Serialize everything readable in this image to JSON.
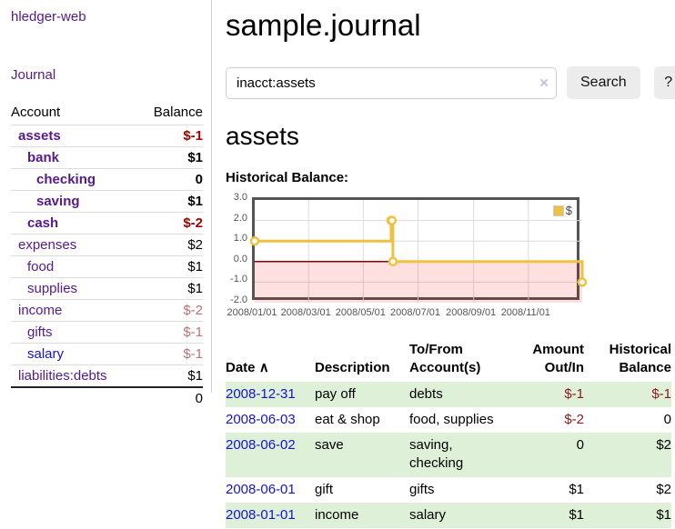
{
  "sidebar": {
    "app_title": "hledger-web",
    "journal_label": "Journal",
    "columns": {
      "account": "Account",
      "balance": "Balance"
    },
    "accounts": [
      {
        "name": "assets",
        "indent": 0,
        "bold": true,
        "balance": "$-1",
        "balance_style": "neg-strong",
        "link_style": "purple"
      },
      {
        "name": "bank",
        "indent": 1,
        "bold": true,
        "balance": "$1",
        "balance_style": "",
        "link_style": "purple"
      },
      {
        "name": "checking",
        "indent": 2,
        "bold": true,
        "balance": "0",
        "balance_style": "",
        "link_style": "purple"
      },
      {
        "name": "saving",
        "indent": 2,
        "bold": true,
        "balance": "$1",
        "balance_style": "",
        "link_style": "purple"
      },
      {
        "name": "cash",
        "indent": 1,
        "bold": true,
        "balance": "$-2",
        "balance_style": "neg-strong",
        "link_style": "purple"
      },
      {
        "name": "expenses",
        "indent": 0,
        "bold": false,
        "balance": "$2",
        "balance_style": "",
        "link_style": "purple"
      },
      {
        "name": "food",
        "indent": 1,
        "bold": false,
        "balance": "$1",
        "balance_style": "",
        "link_style": "purple"
      },
      {
        "name": "supplies",
        "indent": 1,
        "bold": false,
        "balance": "$1",
        "balance_style": "",
        "link_style": "purple"
      },
      {
        "name": "income",
        "indent": 0,
        "bold": false,
        "balance": "$-2",
        "balance_style": "neg-soft",
        "link_style": "purple"
      },
      {
        "name": "gifts",
        "indent": 1,
        "bold": false,
        "balance": "$-1",
        "balance_style": "neg-soft",
        "link_style": "purple"
      },
      {
        "name": "salary",
        "indent": 1,
        "bold": false,
        "balance": "$-1",
        "balance_style": "neg-soft",
        "link_style": "blue"
      },
      {
        "name": "liabilities:debts",
        "indent": 0,
        "bold": false,
        "balance": "$1",
        "balance_style": "",
        "link_style": "purple"
      }
    ],
    "total": "0"
  },
  "header": {
    "title": "sample.journal"
  },
  "search": {
    "value": "inacct:assets",
    "clear_icon": "×",
    "button_label": "Search",
    "help_label": "?"
  },
  "account_page": {
    "title": "assets",
    "chart_label": "Historical Balance:"
  },
  "chart_data": {
    "type": "line",
    "step": true,
    "title": "Historical Balance",
    "series": [
      {
        "name": "$",
        "color": "#edc240",
        "points": [
          [
            "2008-01-01",
            1
          ],
          [
            "2008-06-01",
            2
          ],
          [
            "2008-06-02",
            2
          ],
          [
            "2008-06-03",
            0
          ],
          [
            "2008-12-31",
            -1
          ]
        ]
      }
    ],
    "xlim": [
      "2008-01-01",
      "2008-12-31"
    ],
    "ylim": [
      -2,
      3
    ],
    "x_tick_labels": [
      "2008/01/01",
      "2008/03/01",
      "2008/05/01",
      "2008/07/01",
      "2008/09/01",
      "2008/11/01"
    ],
    "x_tick_dates": [
      "2008-01-01",
      "2008-03-01",
      "2008-05-01",
      "2008-07-01",
      "2008-09-01",
      "2008-11-01"
    ],
    "y_tick_labels": [
      "3.0",
      "2.0",
      "1.0",
      "0.0",
      "-1.0",
      "-2.0"
    ],
    "y_tick_values": [
      3,
      2,
      1,
      0,
      -1,
      -2
    ],
    "grid": true,
    "legend": {
      "label": "$",
      "position": "top-right"
    },
    "colors": {
      "grid": "#dcdcdc",
      "border": "#545454",
      "tick_text": "#545454",
      "negative_region_fill": "rgba(255,0,0,0.12)",
      "zero_line": "#8b0000"
    },
    "negative_region": {
      "from": 0,
      "to": -2
    }
  },
  "register": {
    "columns": {
      "date": "Date",
      "description": "Description",
      "accounts": "To/From Account(s)",
      "amount": "Amount Out/In",
      "balance": "Historical Balance"
    },
    "sort_indicator": "∧",
    "rows": [
      {
        "date": "2008-12-31",
        "description": "pay off",
        "accounts": "debts",
        "amount": "$-1",
        "amount_neg": true,
        "balance": "$-1",
        "balance_neg": true
      },
      {
        "date": "2008-06-03",
        "description": "eat & shop",
        "accounts": "food, supplies",
        "amount": "$-2",
        "amount_neg": true,
        "balance": "0",
        "balance_neg": false
      },
      {
        "date": "2008-06-02",
        "description": "save",
        "accounts": "saving, checking",
        "amount": "0",
        "amount_neg": false,
        "balance": "$2",
        "balance_neg": false
      },
      {
        "date": "2008-06-01",
        "description": "gift",
        "accounts": "gifts",
        "amount": "$1",
        "amount_neg": false,
        "balance": "$2",
        "balance_neg": false
      },
      {
        "date": "2008-01-01",
        "description": "income",
        "accounts": "salary",
        "amount": "$1",
        "amount_neg": false,
        "balance": "$1",
        "balance_neg": false
      }
    ]
  }
}
